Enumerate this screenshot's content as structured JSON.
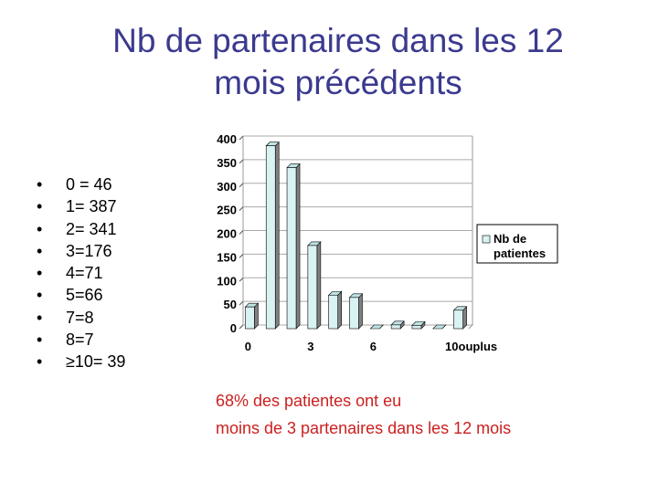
{
  "slide": {
    "title_line1": "Nb  de partenaires dans les 12",
    "title_line2": "mois précédents",
    "bullets": [
      "0 = 46",
      "1= 387",
      "2= 341",
      "3=176",
      "4=71",
      "5=66",
      "7=8",
      "8=7",
      "≥10= 39"
    ],
    "note_line1": "68% des patientes ont eu",
    "note_line2": "moins de 3 partenaires dans les 12 mois"
  },
  "colors": {
    "title": "#3b3a8f",
    "note": "#cc1f1f",
    "bar_front": "#d9f2f2",
    "bar_side": "#808080"
  },
  "chart_data": {
    "type": "bar",
    "categories": [
      "0",
      "1",
      "2",
      "3",
      "4",
      "5",
      "6",
      "7",
      "8",
      "9",
      "10ouplus"
    ],
    "values": [
      46,
      387,
      341,
      176,
      71,
      66,
      0,
      8,
      7,
      0,
      39
    ],
    "x_tick_labels": [
      "0",
      "",
      "",
      "3",
      "",
      "",
      "6",
      "",
      "",
      "",
      "10ouplus"
    ],
    "series": [
      {
        "name": "Nb de patientes",
        "values": [
          46,
          387,
          341,
          176,
          71,
          66,
          0,
          8,
          7,
          0,
          39
        ]
      }
    ],
    "legend_line1": "Nb de",
    "legend_line2": "patientes",
    "y_ticks": [
      "0",
      "50",
      "100",
      "150",
      "200",
      "250",
      "300",
      "350",
      "400"
    ],
    "ylim": [
      0,
      400
    ],
    "grid": true,
    "legend": "right"
  }
}
